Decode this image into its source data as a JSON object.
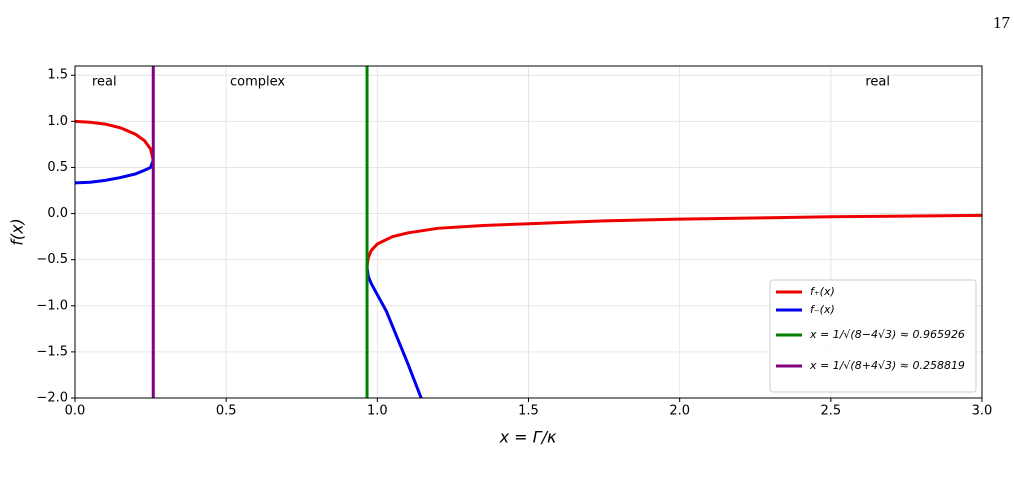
{
  "page_number": "17",
  "chart_data": {
    "type": "line",
    "xlabel": "x = Γ/κ",
    "ylabel": "f(x)",
    "xlim": [
      0,
      3
    ],
    "ylim": [
      -2,
      1.6
    ],
    "xticks": [
      {
        "value": 0,
        "label": "0.0"
      },
      {
        "value": 0.5,
        "label": "0.5"
      },
      {
        "value": 1,
        "label": "1.0"
      },
      {
        "value": 1.5,
        "label": "1.5"
      },
      {
        "value": 2,
        "label": "2.0"
      },
      {
        "value": 2.5,
        "label": "2.5"
      },
      {
        "value": 3,
        "label": "3.0"
      }
    ],
    "yticks": [
      {
        "value": -2,
        "label": "−2.0"
      },
      {
        "value": -1.5,
        "label": "−1.5"
      },
      {
        "value": -1,
        "label": "−1.0"
      },
      {
        "value": -0.5,
        "label": "−0.5"
      },
      {
        "value": 0,
        "label": "0.0"
      },
      {
        "value": 0.5,
        "label": "0.5"
      },
      {
        "value": 1,
        "label": "1.0"
      },
      {
        "value": 1.5,
        "label": "1.5"
      }
    ],
    "grid": true,
    "legend": "lower right",
    "annotations": [
      "real",
      "complex",
      "real"
    ],
    "series": [
      {
        "name": "f₊(x)",
        "color": "#ee0000",
        "x": [
          0,
          0.05,
          0.1,
          0.15,
          0.2,
          0.23,
          0.25,
          0.2588,
          0.6,
          0.9659,
          0.97,
          0.98,
          1.0,
          1.05,
          1.1,
          1.2,
          1.35,
          1.5,
          1.75,
          2.0,
          2.5,
          3.0
        ],
        "values": [
          1.0,
          0.99,
          0.97,
          0.93,
          0.86,
          0.79,
          0.7,
          0.577,
          null,
          -0.577,
          -0.48,
          -0.4,
          -0.33,
          -0.25,
          -0.21,
          -0.16,
          -0.13,
          -0.11,
          -0.08,
          -0.06,
          -0.035,
          -0.02
        ]
      },
      {
        "name": "f₋(x)",
        "color": "#0000ee",
        "x": [
          0,
          0.05,
          0.1,
          0.15,
          0.2,
          0.23,
          0.25,
          0.2588,
          0.6,
          0.9659,
          0.97,
          0.98,
          1.0,
          1.03,
          1.06,
          1.1,
          1.145
        ],
        "values": [
          0.333,
          0.34,
          0.36,
          0.39,
          0.43,
          0.47,
          0.5,
          0.577,
          null,
          -0.577,
          -0.68,
          -0.76,
          -0.88,
          -1.06,
          -1.3,
          -1.62,
          -2.0
        ]
      }
    ],
    "vlines": [
      {
        "name": "x = 1/√(8−4√3) ≈ 0.965926",
        "color": "#008000",
        "x": 0.965926
      },
      {
        "name": "x = 1/√(8+4√3) ≈ 0.258819",
        "color": "#800080",
        "x": 0.258819
      }
    ]
  }
}
